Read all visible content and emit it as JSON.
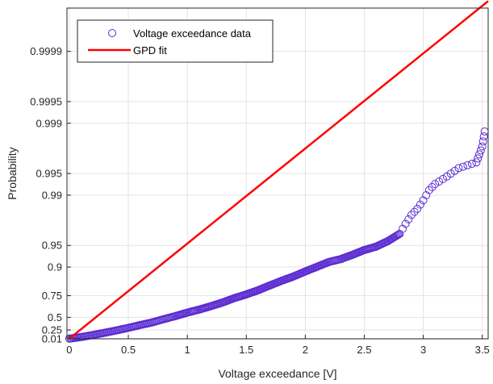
{
  "chart_data": {
    "type": "scatter",
    "title": "",
    "xlabel": "Voltage exceedance [V]",
    "ylabel": "Probability",
    "xlim": [
      -0.02,
      3.55
    ],
    "x_ticks": [
      0,
      0.5,
      1,
      1.5,
      2,
      2.5,
      3,
      3.5
    ],
    "x_tick_labels": [
      "0",
      "0.5",
      "1",
      "1.5",
      "2",
      "2.5",
      "3",
      "3.5"
    ],
    "y_scale": "exponential-probability (-ln(1-p))",
    "ylim": [
      0.005,
      0.999975
    ],
    "y_ticks": [
      0.01,
      0.25,
      0.5,
      0.75,
      0.9,
      0.95,
      0.99,
      0.995,
      0.999,
      0.9995,
      0.9999
    ],
    "y_tick_labels": [
      "0.01",
      "0.25",
      "0.5",
      "0.75",
      "0.9",
      "0.95",
      "0.99",
      "0.995",
      "0.999",
      "0.9995",
      "0.9999"
    ],
    "grid": true,
    "legend_position": "top-left",
    "series": [
      {
        "name": "Voltage exceedance data",
        "kind": "scatter",
        "marker": "open-circle",
        "color": "#5b2bd0",
        "points": [
          [
            0.0,
            0.01
          ],
          [
            0.1,
            0.06
          ],
          [
            0.2,
            0.12
          ],
          [
            0.3,
            0.18
          ],
          [
            0.4,
            0.24
          ],
          [
            0.5,
            0.3
          ],
          [
            0.6,
            0.36
          ],
          [
            0.7,
            0.41
          ],
          [
            0.8,
            0.47
          ],
          [
            0.9,
            0.52
          ],
          [
            1.0,
            0.57
          ],
          [
            1.1,
            0.61
          ],
          [
            1.2,
            0.65
          ],
          [
            1.3,
            0.69
          ],
          [
            1.4,
            0.73
          ],
          [
            1.5,
            0.76
          ],
          [
            1.6,
            0.79
          ],
          [
            1.7,
            0.82
          ],
          [
            1.8,
            0.845
          ],
          [
            1.9,
            0.865
          ],
          [
            2.0,
            0.885
          ],
          [
            2.1,
            0.901
          ],
          [
            2.2,
            0.915
          ],
          [
            2.3,
            0.9225
          ],
          [
            2.4,
            0.9325
          ],
          [
            2.5,
            0.942
          ],
          [
            2.6,
            0.948
          ],
          [
            2.7,
            0.9565
          ],
          [
            2.8,
            0.9655
          ],
          [
            2.85,
            0.975
          ],
          [
            2.9,
            0.9812
          ],
          [
            2.95,
            0.9845
          ],
          [
            3.0,
            0.9882
          ],
          [
            3.05,
            0.9915
          ],
          [
            3.1,
            0.993
          ],
          [
            3.2,
            0.9945
          ],
          [
            3.3,
            0.9958
          ],
          [
            3.45,
            0.9965
          ],
          [
            3.5,
            0.9979
          ],
          [
            3.52,
            0.9987
          ]
        ]
      },
      {
        "name": "GPD fit",
        "kind": "line",
        "color": "#ff0000",
        "points": [
          [
            0.0,
            0.01
          ],
          [
            3.55,
            0.99998
          ]
        ]
      }
    ]
  }
}
